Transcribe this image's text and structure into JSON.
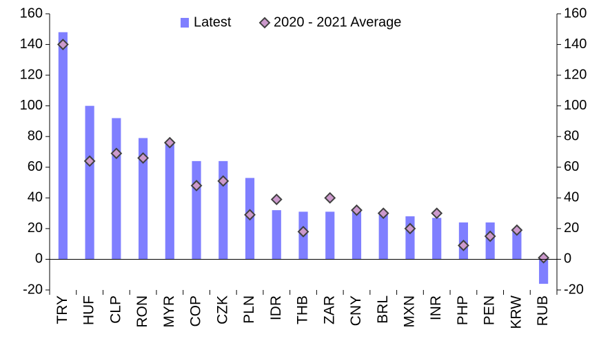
{
  "chart_data": {
    "type": "bar",
    "categories": [
      "TRY",
      "HUF",
      "CLP",
      "RON",
      "MYR",
      "COP",
      "CZK",
      "PLN",
      "IDR",
      "THB",
      "ZAR",
      "CNY",
      "BRL",
      "MXN",
      "INR",
      "PHP",
      "PEN",
      "KRW",
      "RUB"
    ],
    "series": [
      {
        "name": "Latest",
        "color": "#7f7fff",
        "values": [
          148,
          100,
          92,
          79,
          76,
          64,
          64,
          53,
          32,
          31,
          31,
          32,
          31,
          28,
          27,
          24,
          24,
          20,
          -16
        ]
      },
      {
        "name": "2020 - 2021 Average",
        "color": "#cc99cc",
        "marker": "diamond",
        "values": [
          140,
          64,
          69,
          66,
          76,
          48,
          51,
          29,
          39,
          18,
          40,
          32,
          30,
          20,
          30,
          9,
          15,
          19,
          1
        ]
      }
    ],
    "ylim": [
      -20,
      160
    ],
    "yticks": [
      -20,
      0,
      20,
      40,
      60,
      80,
      100,
      120,
      140,
      160
    ],
    "y2lim": [
      -20,
      160
    ],
    "y2ticks": [
      -20,
      0,
      20,
      40,
      60,
      80,
      100,
      120,
      140,
      160
    ],
    "legend": "top"
  }
}
